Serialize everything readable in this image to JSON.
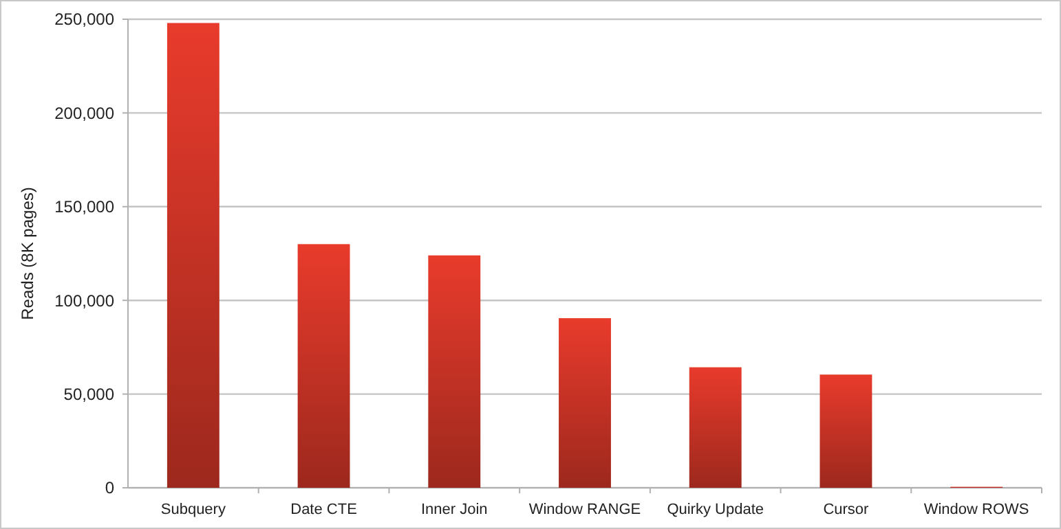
{
  "chart_data": {
    "type": "bar",
    "ylabel": "Reads (8K pages)",
    "categories": [
      "Subquery",
      "Date CTE",
      "Inner Join",
      "Window RANGE",
      "Quirky Update",
      "Cursor",
      "Window ROWS"
    ],
    "values": [
      248000,
      130000,
      124000,
      90500,
      64300,
      60400,
      500
    ],
    "color": "#b52e22",
    "ylim": [
      0,
      250000
    ],
    "yticks": [
      {
        "value": 0,
        "label": "0"
      },
      {
        "value": 50000,
        "label": "50,000"
      },
      {
        "value": 100000,
        "label": "100,000"
      },
      {
        "value": 150000,
        "label": "150,000"
      },
      {
        "value": 200000,
        "label": "200,000"
      },
      {
        "value": 250000,
        "label": "250,000"
      }
    ],
    "grid": "y"
  }
}
